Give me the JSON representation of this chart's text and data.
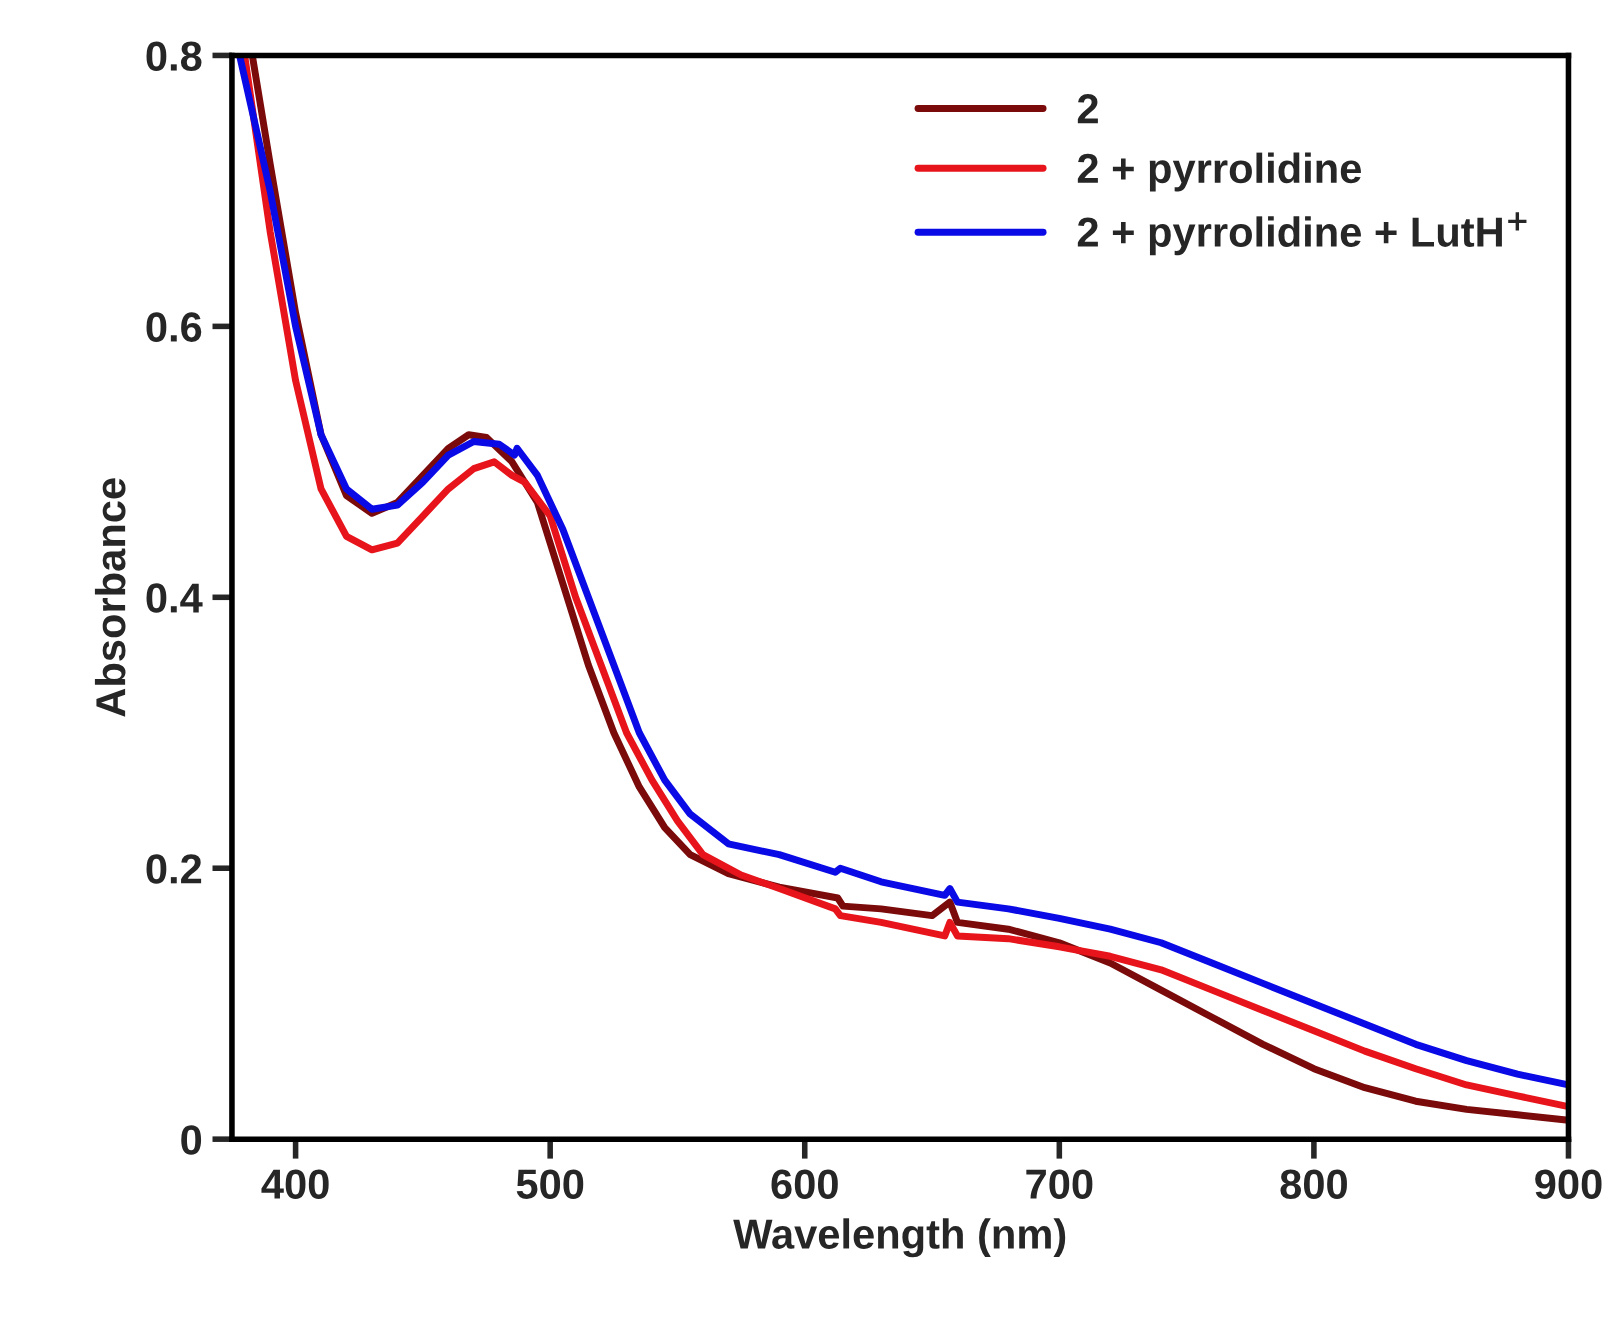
{
  "chart_data": {
    "type": "line",
    "xlabel": "Wavelength (nm)",
    "ylabel": "Absorbance",
    "xlim": [
      375,
      900
    ],
    "xticks": [
      400,
      500,
      600,
      700,
      800,
      900
    ],
    "ylim": [
      0,
      0.8
    ],
    "yticks": [
      0,
      0.2,
      0.4,
      0.6,
      0.8
    ],
    "grid": false,
    "legend": "top right",
    "marker": "none",
    "line_style": "solid",
    "series": [
      {
        "name": "2",
        "color": "#7b0a0a",
        "x": [
          383,
          390,
          400,
          410,
          420,
          430,
          440,
          450,
          460,
          468,
          475,
          485,
          495,
          505,
          515,
          525,
          535,
          545,
          555,
          570,
          590,
          613,
          615,
          630,
          650,
          657,
          660,
          680,
          700,
          720,
          740,
          760,
          780,
          800,
          820,
          840,
          860,
          880,
          900
        ],
        "values": [
          0.8,
          0.72,
          0.61,
          0.52,
          0.475,
          0.462,
          0.47,
          0.49,
          0.51,
          0.52,
          0.518,
          0.5,
          0.47,
          0.41,
          0.35,
          0.3,
          0.26,
          0.23,
          0.21,
          0.196,
          0.186,
          0.178,
          0.172,
          0.17,
          0.165,
          0.175,
          0.16,
          0.155,
          0.145,
          0.13,
          0.11,
          0.09,
          0.07,
          0.052,
          0.038,
          0.028,
          0.022,
          0.018,
          0.014
        ]
      },
      {
        "name": "2 + pyrrolidine",
        "color": "#e8141b",
        "x": [
          380,
          390,
          400,
          410,
          420,
          430,
          440,
          450,
          460,
          470,
          478,
          485,
          490,
          500,
          510,
          520,
          530,
          540,
          550,
          560,
          575,
          590,
          612,
          614,
          630,
          655,
          657,
          660,
          680,
          700,
          720,
          740,
          760,
          780,
          800,
          820,
          840,
          860,
          880,
          900
        ],
        "values": [
          0.8,
          0.67,
          0.56,
          0.48,
          0.445,
          0.435,
          0.44,
          0.46,
          0.48,
          0.495,
          0.5,
          0.49,
          0.485,
          0.46,
          0.4,
          0.35,
          0.3,
          0.265,
          0.235,
          0.21,
          0.195,
          0.185,
          0.17,
          0.165,
          0.16,
          0.15,
          0.16,
          0.15,
          0.148,
          0.142,
          0.135,
          0.125,
          0.11,
          0.095,
          0.08,
          0.065,
          0.052,
          0.04,
          0.032,
          0.024
        ]
      },
      {
        "name": "2 + pyrrolidine + LutH$^{+}$",
        "color": "#0a0ae6",
        "x": [
          378,
          390,
          400,
          410,
          420,
          430,
          440,
          450,
          460,
          470,
          480,
          486,
          487,
          495,
          505,
          515,
          525,
          535,
          545,
          555,
          570,
          590,
          612,
          614,
          630,
          655,
          657,
          660,
          680,
          700,
          720,
          740,
          760,
          780,
          800,
          820,
          840,
          860,
          880,
          900
        ],
        "values": [
          0.8,
          0.7,
          0.6,
          0.52,
          0.48,
          0.465,
          0.468,
          0.485,
          0.505,
          0.515,
          0.513,
          0.505,
          0.51,
          0.49,
          0.45,
          0.4,
          0.35,
          0.3,
          0.265,
          0.24,
          0.218,
          0.21,
          0.197,
          0.2,
          0.19,
          0.18,
          0.185,
          0.175,
          0.17,
          0.163,
          0.155,
          0.145,
          0.13,
          0.115,
          0.1,
          0.085,
          0.07,
          0.058,
          0.048,
          0.04
        ]
      }
    ]
  }
}
